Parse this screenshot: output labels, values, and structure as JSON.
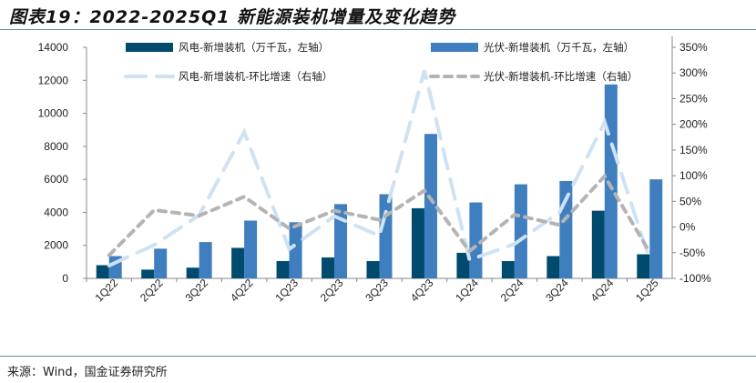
{
  "title": "图表19：2022-2025Q1 新能源装机增量及变化趋势",
  "source": "来源：Wind，国金证券研究所",
  "chart_data": {
    "type": "bar+line",
    "categories": [
      "1Q22",
      "2Q22",
      "3Q22",
      "4Q22",
      "1Q23",
      "2Q23",
      "3Q23",
      "4Q23",
      "1Q24",
      "2Q24",
      "3Q24",
      "4Q24",
      "1Q25"
    ],
    "left_axis": {
      "ylim": [
        0,
        14000
      ],
      "ticks": [
        "0",
        "2000",
        "4000",
        "6000",
        "8000",
        "10000",
        "12000",
        "14000"
      ]
    },
    "right_axis": {
      "ylim": [
        -100,
        350
      ],
      "ticks": [
        "-100%",
        "-50%",
        "0%",
        "50%",
        "100%",
        "150%",
        "200%",
        "250%",
        "300%",
        "350%"
      ]
    },
    "legend_position": "top",
    "grid": false,
    "series": [
      {
        "name": "风电-新增装机（万千瓦，左轴）",
        "type": "bar",
        "axis": "left",
        "color": "#004a6e",
        "values": [
          800,
          530,
          650,
          1850,
          1050,
          1270,
          1050,
          4250,
          1550,
          1050,
          1350,
          4100,
          1460
        ]
      },
      {
        "name": "光伏-新增装机（万千瓦，左轴）",
        "type": "bar",
        "axis": "left",
        "color": "#3f7fbf",
        "values": [
          1350,
          1800,
          2200,
          3500,
          3400,
          4500,
          5100,
          8750,
          4600,
          5700,
          5900,
          11750,
          6000
        ]
      },
      {
        "name": "风电-新增装机-环比增速（右轴）",
        "type": "line",
        "axis": "right",
        "color": "#cfe2f3",
        "dash": "long",
        "values": [
          -75,
          -35,
          23,
          185,
          -43,
          21,
          -17,
          305,
          -64,
          -33,
          29,
          204,
          -64
        ]
      },
      {
        "name": "光伏-新增装机-环比增速（右轴）",
        "type": "line",
        "axis": "right",
        "color": "#b4b4b4",
        "dash": "short",
        "values": [
          -55,
          33,
          22,
          59,
          -3,
          32,
          14,
          71,
          -47,
          24,
          4,
          99,
          -49
        ]
      }
    ]
  }
}
